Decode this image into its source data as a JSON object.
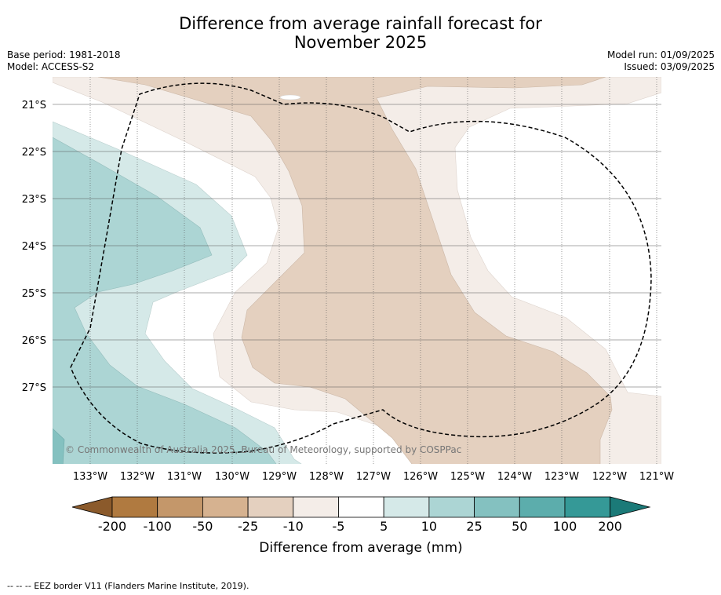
{
  "title_line1": "Difference from average rainfall forecast for",
  "title_line2": "November 2025",
  "base_period": "Base period: 1981-2018",
  "model": "Model: ACCESS-S2",
  "model_run": "Model run: 01/09/2025",
  "issued": "Issued: 03/09/2025",
  "copyright": "© Commonwealth of Australia 2025, Bureau of Meteorology, supported by COSPPac",
  "lon_labels": [
    "133°W",
    "132°W",
    "131°W",
    "130°W",
    "129°W",
    "128°W",
    "127°W",
    "126°W",
    "125°W",
    "124°W",
    "123°W",
    "122°W",
    "121°W"
  ],
  "lat_labels": [
    "21°S",
    "22°S",
    "23°S",
    "24°S",
    "25°S",
    "26°S",
    "27°S"
  ],
  "colorbar": {
    "label": "Difference from average (mm)",
    "ticks": [
      "-200",
      "-100",
      "-50",
      "-25",
      "-10",
      "-5",
      "5",
      "10",
      "25",
      "50",
      "100",
      "200"
    ],
    "colors": [
      "#8b5a2b",
      "#b07a40",
      "#c4976a",
      "#d6b290",
      "#e4d0bf",
      "#f4ede8",
      "#ffffff",
      "#d5e9e8",
      "#acd5d4",
      "#84c1c0",
      "#5cadac",
      "#359997",
      "#1b7a78"
    ]
  },
  "footnote": "-- -- -- EEZ border V11 (Flanders Marine Institute, 2019)."
}
